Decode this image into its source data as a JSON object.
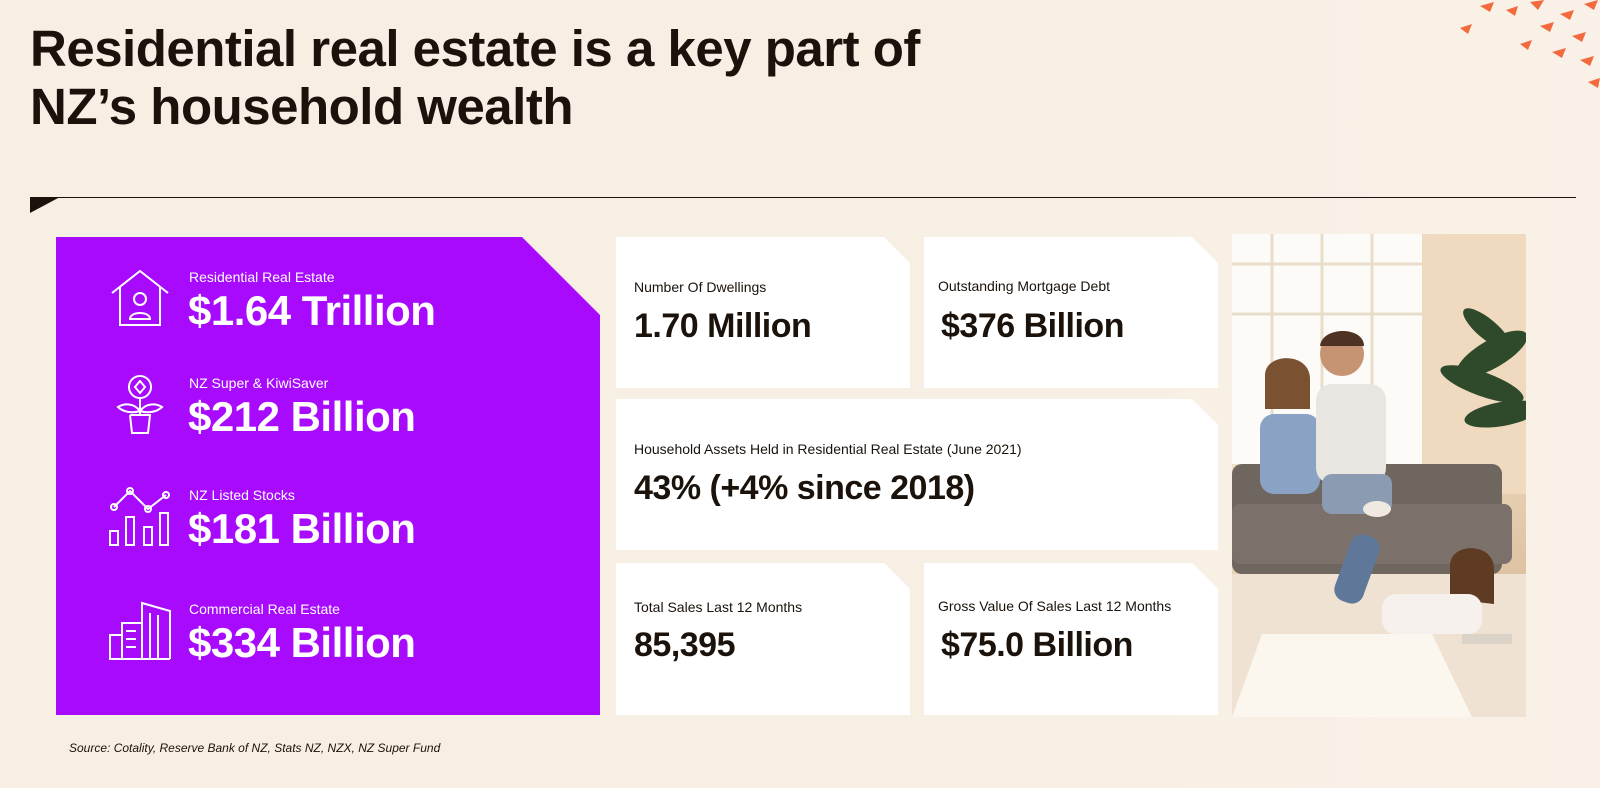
{
  "title": "Residential real estate is a key part of NZ’s household wealth",
  "colors": {
    "background": "#f8efe4",
    "accent_purple": "#a70afc",
    "text_dark": "#1a120b",
    "card_white": "#ffffff",
    "decoration_orange": "#f26a3d"
  },
  "summary_stats": [
    {
      "label": "Residential Real Estate",
      "value": "$1.64 Trillion",
      "icon": "house-person-icon"
    },
    {
      "label": "NZ Super & KiwiSaver",
      "value": "$212 Billion",
      "icon": "potted-plant-coin-icon"
    },
    {
      "label": "NZ Listed Stocks",
      "value": "$181 Billion",
      "icon": "bar-line-chart-icon"
    },
    {
      "label": "Commercial Real Estate",
      "value": "$334 Billion",
      "icon": "office-buildings-icon"
    }
  ],
  "cards": {
    "dwellings": {
      "label": "Number Of Dwellings",
      "value": "1.70 Million"
    },
    "mortgage_debt": {
      "label": "Outstanding Mortgage Debt",
      "value": "$376 Billion"
    },
    "household_assets": {
      "label": "Household Assets Held in Residential Real Estate (June 2021)",
      "value": "43% (+4% since 2018)"
    },
    "total_sales": {
      "label": "Total Sales Last 12 Months",
      "value": "85,395"
    },
    "gross_value": {
      "label": "Gross Value Of Sales Last 12 Months",
      "value": "$75.0 Billion"
    }
  },
  "photo": {
    "subject": "family-on-sofa-photo"
  },
  "source": "Source: Cotality, Reserve Bank of NZ, Stats NZ, NZX, NZ Super Fund"
}
